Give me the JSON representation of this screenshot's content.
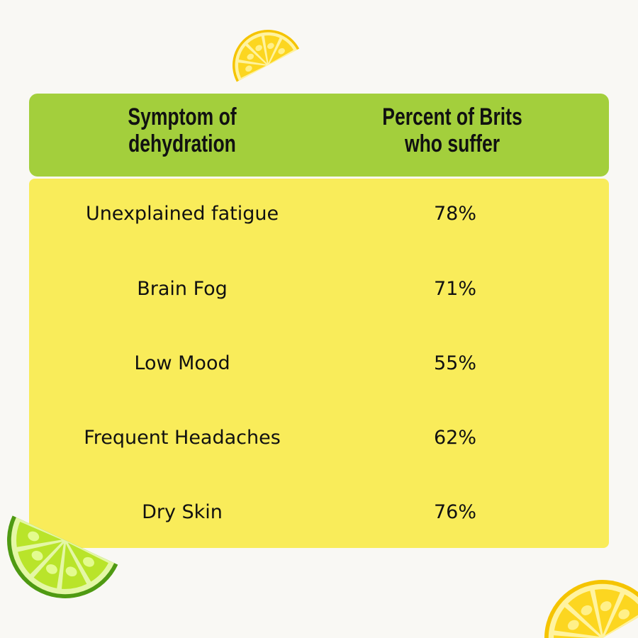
{
  "chart_data": {
    "type": "table",
    "columns": [
      "Symptom of dehydration",
      "Percent of Brits who suffer"
    ],
    "header_lines": [
      [
        "Symptom of",
        "dehydration"
      ],
      [
        "Percent of Brits",
        "who suffer"
      ]
    ],
    "rows": [
      {
        "symptom": "Unexplained fatigue",
        "percent": "78%"
      },
      {
        "symptom": "Brain Fog",
        "percent": "71%"
      },
      {
        "symptom": "Low Mood",
        "percent": "55%"
      },
      {
        "symptom": "Frequent Headaches",
        "percent": "62%"
      },
      {
        "symptom": "Dry Skin",
        "percent": "76%"
      }
    ]
  },
  "colors": {
    "header": "#a3cf3c",
    "body": "#f9ec5a",
    "background": "#f9f8f4",
    "lemon": "#fcd620",
    "lime": "#b9e42a"
  },
  "decorations": [
    "lemon-slice-icon",
    "lime-slice-icon",
    "lemon-slice-icon"
  ]
}
